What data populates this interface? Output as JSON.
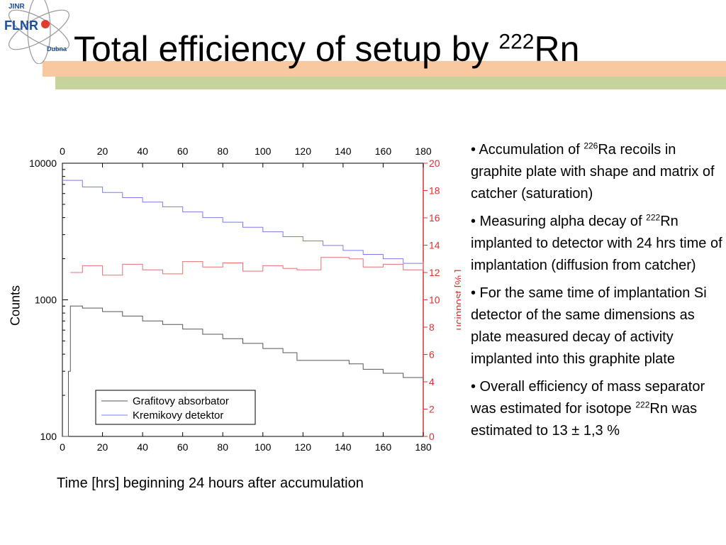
{
  "slide": {
    "title_main": "Total efficiency of setup by ",
    "title_sup": "222",
    "title_end": "Rn",
    "logo": {
      "top": "JINR",
      "main": "FLNR",
      "bottom": "Dubna"
    }
  },
  "chart_data": {
    "type": "line",
    "x_top_ticks": [
      "0",
      "20",
      "40",
      "60",
      "80",
      "100",
      "120",
      "140",
      "160",
      "180"
    ],
    "x_bottom_ticks": [
      "0",
      "20",
      "40",
      "60",
      "80",
      "100",
      "120",
      "140",
      "160",
      "180"
    ],
    "y_left_ticks": [
      "100",
      "1000",
      "10000"
    ],
    "y_right_ticks": [
      "0",
      "2",
      "4",
      "6",
      "8",
      "10",
      "12",
      "14",
      "16",
      "18",
      "20"
    ],
    "xlim": [
      0,
      180
    ],
    "ylim_left": [
      100,
      10000
    ],
    "ylim_right": [
      0,
      20
    ],
    "y_left_scale": "log",
    "ylabel_left": "Counts",
    "ylabel_right": "ucinnost [% ]",
    "xlabel": "Time [hrs] beginning 24 hours after accumulation",
    "legend_position": "bottom-left",
    "series": [
      {
        "name": "Kremikovy detektor",
        "color": "#7b7bf0",
        "axis": "left",
        "x": [
          0,
          10,
          20,
          30,
          40,
          50,
          60,
          70,
          80,
          90,
          100,
          110,
          120,
          130,
          140,
          150,
          160,
          170,
          180
        ],
        "values": [
          7500,
          6700,
          6100,
          5600,
          5200,
          4800,
          4400,
          4000,
          3700,
          3400,
          3150,
          2900,
          2700,
          2500,
          2300,
          2150,
          2000,
          1850,
          1700
        ]
      },
      {
        "name": "Grafitovy absorbator",
        "color": "#555555",
        "axis": "left",
        "x": [
          0,
          2,
          3,
          4,
          10,
          20,
          30,
          40,
          50,
          60,
          70,
          80,
          90,
          100,
          110,
          117,
          143,
          150,
          160,
          170,
          180
        ],
        "values": [
          100,
          100,
          300,
          900,
          870,
          820,
          760,
          700,
          660,
          610,
          560,
          520,
          480,
          440,
          410,
          360,
          340,
          310,
          290,
          270,
          255
        ]
      },
      {
        "name": "",
        "color": "#e87070",
        "axis": "right",
        "x": [
          4,
          10,
          20,
          30,
          40,
          50,
          60,
          70,
          80,
          90,
          100,
          110,
          117,
          129,
          143,
          150,
          160,
          170,
          180
        ],
        "values": [
          12,
          12.5,
          11.8,
          12.6,
          12.2,
          11.9,
          12.8,
          12.4,
          12.7,
          12.1,
          12.5,
          12.3,
          12.2,
          13.1,
          13.0,
          12.4,
          12.6,
          12.2,
          12.8
        ]
      }
    ]
  },
  "bullets": [
    {
      "pre": "• Accumulation of ",
      "sup": "226",
      "post": "Ra recoils in graphite plate with shape and matrix of catcher (saturation)"
    },
    {
      "pre": "• Measuring alpha decay of ",
      "sup": "222",
      "post": "Rn implanted to detector with 24 hrs time of implantation (diffusion from catcher)"
    },
    {
      "pre": "• For the same time of implantation Si detector of the same dimensions as plate measured decay of activity implanted into this graphite plate",
      "sup": "",
      "post": ""
    },
    {
      "pre": "• Overall efficiency of mass separator was estimated for isotope ",
      "sup": "222",
      "post": "Rn  was estimated to 13 ± 1,3 %"
    }
  ]
}
